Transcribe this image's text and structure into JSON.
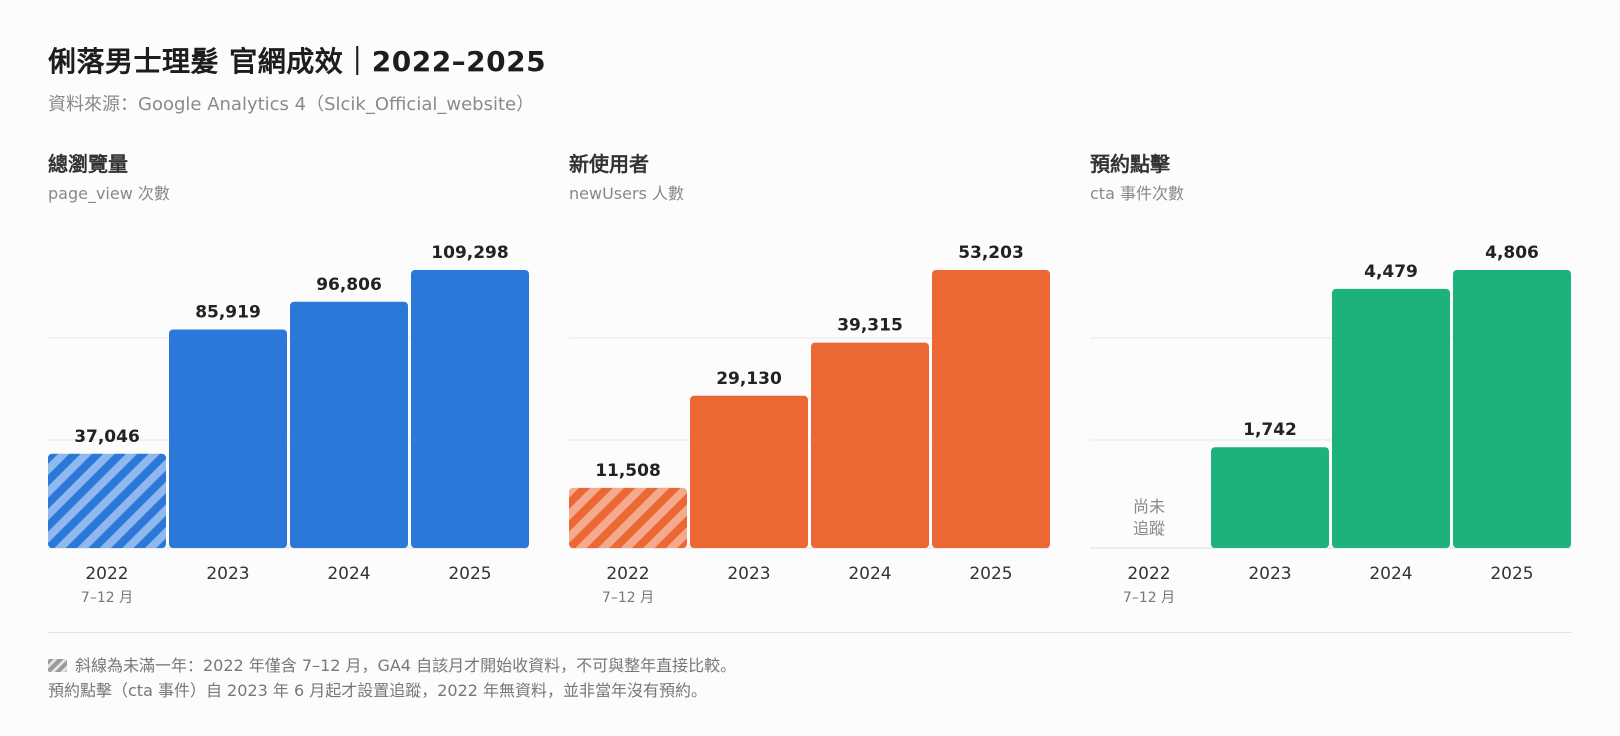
{
  "header": {
    "title": "俐落男士理髮 官網成效｜2022–2025",
    "subtitle": "資料來源：Google Analytics 4（Slcik_Official_website）"
  },
  "chart_data": [
    {
      "type": "bar",
      "title": "總瀏覽量",
      "subtitle": "page_view 次數",
      "categories": [
        "2022",
        "2023",
        "2024",
        "2025"
      ],
      "category_notes": [
        "7–12 月",
        "",
        "",
        ""
      ],
      "values": [
        37046,
        85919,
        96806,
        109298
      ],
      "value_labels": [
        "37,046",
        "85,919",
        "96,806",
        "109,298"
      ],
      "partial": [
        true,
        false,
        false,
        false
      ],
      "missing_labels": [
        "",
        "",
        "",
        ""
      ],
      "color": "#2b78d8",
      "color_light": "#8fb9ee",
      "ylim": [
        0,
        109298
      ],
      "grid": true
    },
    {
      "type": "bar",
      "title": "新使用者",
      "subtitle": "newUsers 人數",
      "categories": [
        "2022",
        "2023",
        "2024",
        "2025"
      ],
      "category_notes": [
        "7–12 月",
        "",
        "",
        ""
      ],
      "values": [
        11508,
        29130,
        39315,
        53203
      ],
      "value_labels": [
        "11,508",
        "29,130",
        "39,315",
        "53,203"
      ],
      "partial": [
        true,
        false,
        false,
        false
      ],
      "missing_labels": [
        "",
        "",
        "",
        ""
      ],
      "color": "#eb6835",
      "color_light": "#f4ab8d",
      "ylim": [
        0,
        53203
      ],
      "grid": true
    },
    {
      "type": "bar",
      "title": "預約點擊",
      "subtitle": "cta 事件次數",
      "categories": [
        "2022",
        "2023",
        "2024",
        "2025"
      ],
      "category_notes": [
        "7–12 月",
        "",
        "",
        ""
      ],
      "values": [
        null,
        1742,
        4479,
        4806
      ],
      "value_labels": [
        "",
        "1,742",
        "4,479",
        "4,806"
      ],
      "partial": [
        false,
        false,
        false,
        false
      ],
      "missing_labels": [
        "尚未\n追蹤",
        "",
        "",
        ""
      ],
      "color": "#1db27a",
      "color_light": "#86d9b8",
      "ylim": [
        0,
        4806
      ],
      "grid": true
    }
  ],
  "footer": {
    "note1": "斜線為未滿一年：2022 年僅含 7–12 月，GA4 自該月才開始收資料，不可與整年直接比較。",
    "note2": "預約點擊（cta 事件）自 2023 年 6 月起才設置追蹤，2022 年無資料，並非當年沒有預約。"
  }
}
